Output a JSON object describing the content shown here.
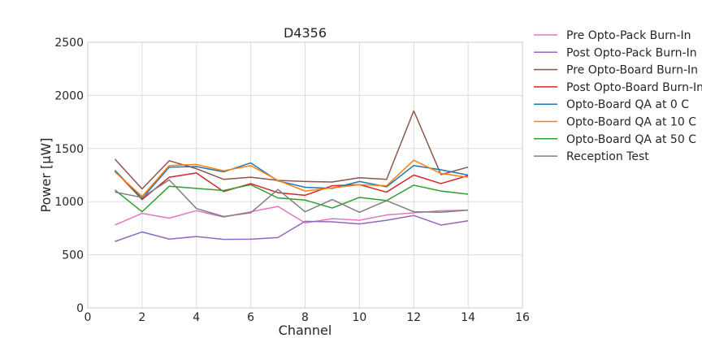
{
  "chart_data": {
    "type": "line",
    "title": "D4356",
    "xlabel": "Channel",
    "ylabel": "Power [μW]",
    "xlim": [
      0,
      16
    ],
    "ylim": [
      0,
      2500
    ],
    "xticks": [
      0,
      2,
      4,
      6,
      8,
      10,
      12,
      14,
      16
    ],
    "yticks": [
      0,
      500,
      1000,
      1500,
      2000,
      2500
    ],
    "grid": true,
    "legend_position": "outside-right",
    "x": [
      1,
      2,
      3,
      4,
      5,
      6,
      7,
      8,
      9,
      10,
      11,
      12,
      13,
      14
    ],
    "series": [
      {
        "name": "Pre Opto-Pack Burn-In",
        "color": "#e377c2",
        "values": [
          780,
          890,
          845,
          915,
          855,
          905,
          955,
          800,
          840,
          825,
          875,
          895,
          915,
          920
        ]
      },
      {
        "name": "Post Opto-Pack Burn-In",
        "color": "#9467bd",
        "values": [
          625,
          715,
          648,
          672,
          645,
          647,
          662,
          815,
          810,
          790,
          825,
          870,
          780,
          820
        ]
      },
      {
        "name": "Pre Opto-Board Burn-In",
        "color": "#8c564b",
        "values": [
          1400,
          1120,
          1385,
          1310,
          1210,
          1230,
          1200,
          1190,
          1185,
          1225,
          1210,
          1855,
          1255,
          1325
        ]
      },
      {
        "name": "Post Opto-Board Burn-In",
        "color": "#d62728",
        "values": [
          1290,
          1020,
          1230,
          1270,
          1095,
          1170,
          1085,
          1060,
          1150,
          1160,
          1090,
          1250,
          1170,
          1245
        ]
      },
      {
        "name": "Opto-Board QA at 0 C",
        "color": "#1f77b4",
        "values": [
          1295,
          1030,
          1325,
          1330,
          1280,
          1365,
          1195,
          1135,
          1125,
          1190,
          1140,
          1340,
          1300,
          1250
        ]
      },
      {
        "name": "Opto-Board QA at 10 C",
        "color": "#ff7f0e",
        "values": [
          1280,
          1050,
          1340,
          1350,
          1290,
          1340,
          1200,
          1100,
          1130,
          1160,
          1150,
          1390,
          1265,
          1230
        ]
      },
      {
        "name": "Opto-Board QA at 50 C",
        "color": "#2ca02c",
        "values": [
          1110,
          905,
          1145,
          1125,
          1105,
          1160,
          1035,
          1015,
          940,
          1040,
          1010,
          1155,
          1100,
          1070
        ]
      },
      {
        "name": "Reception Test",
        "color": "#7f7f7f",
        "values": [
          1090,
          1040,
          1205,
          935,
          860,
          895,
          1115,
          905,
          1020,
          900,
          1010,
          905,
          900,
          920
        ]
      }
    ]
  }
}
